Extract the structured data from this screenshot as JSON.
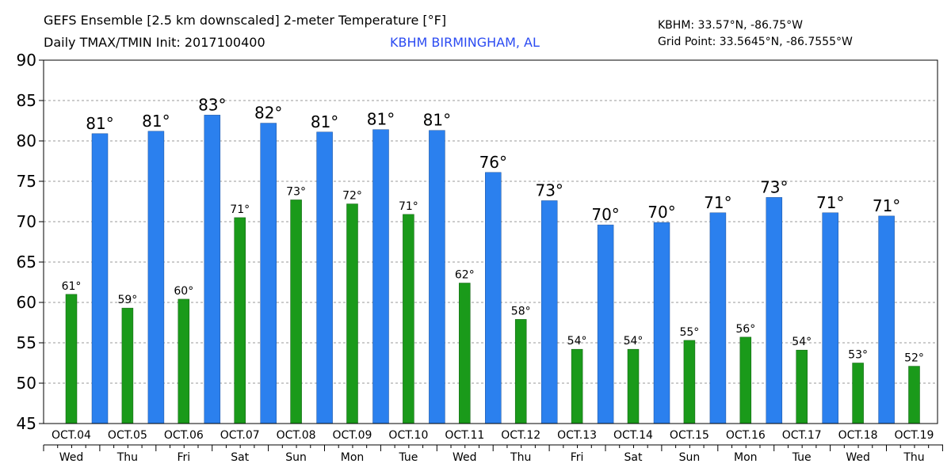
{
  "header": {
    "title_line1": "GEFS Ensemble [2.5 km downscaled] 2-meter Temperature [°F]",
    "title_line2": "Daily TMAX/TMIN Init: 2017100400",
    "station": "KBHM BIRMINGHAM, AL",
    "station_coords": "KBHM: 33.57°N, -86.75°W",
    "grid_point": "Grid Point: 33.5645°N, -86.7555°W"
  },
  "chart_data": {
    "type": "bar",
    "ylim": [
      45,
      90
    ],
    "yticks": [
      45,
      50,
      55,
      60,
      65,
      70,
      75,
      80,
      85,
      90
    ],
    "grid": "horizontal dashed",
    "colors": {
      "tmax": "#2b80ee",
      "tmin": "#1a9a1a"
    },
    "dates": [
      "OCT.04",
      "OCT.05",
      "OCT.06",
      "OCT.07",
      "OCT.08",
      "OCT.09",
      "OCT.10",
      "OCT.11",
      "OCT.12",
      "OCT.13",
      "OCT.14",
      "OCT.15",
      "OCT.16",
      "OCT.17",
      "OCT.18",
      "OCT.19"
    ],
    "weekdays": [
      "Wed",
      "Thu",
      "Fri",
      "Sat",
      "Sun",
      "Mon",
      "Tue",
      "Wed",
      "Thu",
      "Fri",
      "Sat",
      "Sun",
      "Mon",
      "Tue",
      "Wed",
      "Thu"
    ],
    "tmin_values": [
      61.0,
      59.3,
      60.4,
      70.5,
      72.7,
      72.2,
      70.9,
      62.4,
      57.9,
      54.2,
      54.2,
      55.3,
      55.7,
      54.1,
      52.5,
      52.1
    ],
    "tmin_labels": [
      "61°",
      "59°",
      "60°",
      "71°",
      "73°",
      "72°",
      "71°",
      "62°",
      "58°",
      "54°",
      "54°",
      "55°",
      "56°",
      "54°",
      "53°",
      "52°"
    ],
    "tmax_values": [
      80.9,
      81.2,
      83.2,
      82.2,
      81.1,
      81.4,
      81.3,
      76.1,
      72.6,
      69.6,
      69.9,
      71.1,
      73.0,
      71.1,
      70.7
    ],
    "tmax_labels": [
      "81°",
      "81°",
      "83°",
      "82°",
      "81°",
      "81°",
      "81°",
      "76°",
      "73°",
      "70°",
      "70°",
      "71°",
      "73°",
      "71°",
      "71°"
    ]
  }
}
